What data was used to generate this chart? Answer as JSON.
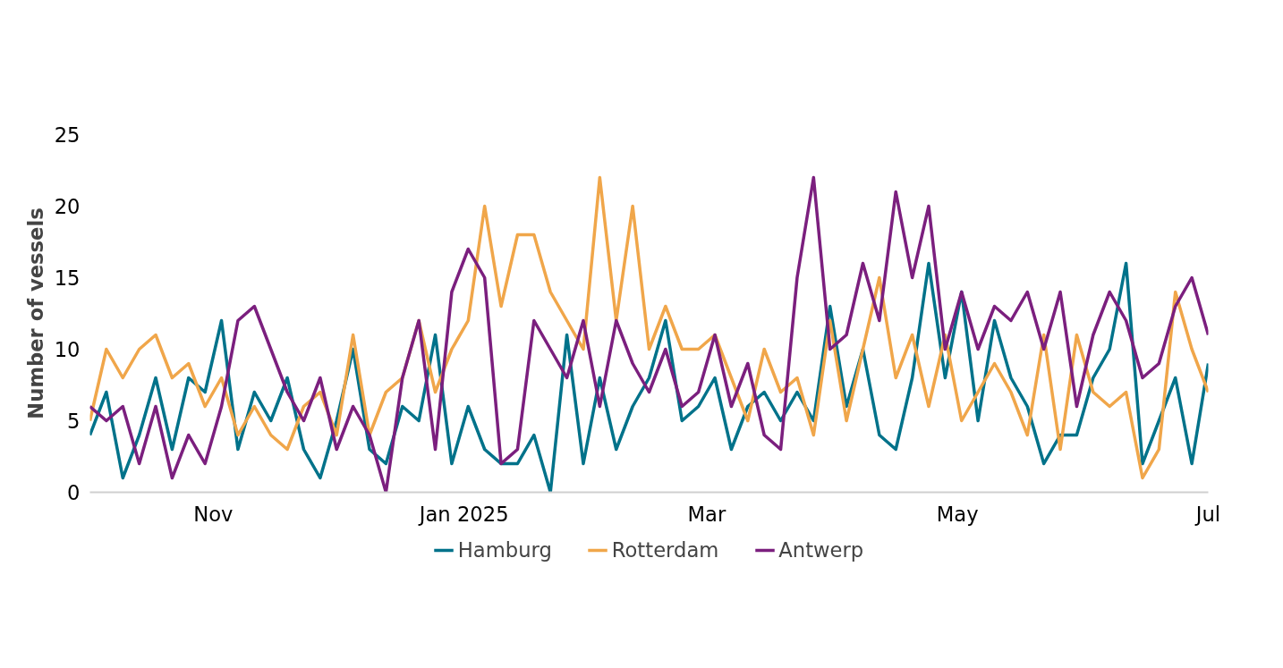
{
  "chart_data": {
    "type": "line",
    "ylabel": "Number of vessels",
    "x": [
      "2024-10-02",
      "2024-10-06",
      "2024-10-10",
      "2024-10-14",
      "2024-10-18",
      "2024-10-22",
      "2024-10-26",
      "2024-10-30",
      "2024-11-03",
      "2024-11-07",
      "2024-11-11",
      "2024-11-15",
      "2024-11-19",
      "2024-11-23",
      "2024-11-27",
      "2024-12-01",
      "2024-12-05",
      "2024-12-09",
      "2024-12-13",
      "2024-12-17",
      "2024-12-21",
      "2024-12-25",
      "2024-12-29",
      "2025-01-02",
      "2025-01-06",
      "2025-01-10",
      "2025-01-14",
      "2025-01-18",
      "2025-01-22",
      "2025-01-26",
      "2025-01-30",
      "2025-02-03",
      "2025-02-07",
      "2025-02-11",
      "2025-02-15",
      "2025-02-19",
      "2025-02-23",
      "2025-02-27",
      "2025-03-03",
      "2025-03-07",
      "2025-03-11",
      "2025-03-15",
      "2025-03-19",
      "2025-03-23",
      "2025-03-27",
      "2025-03-31",
      "2025-04-04",
      "2025-04-08",
      "2025-04-12",
      "2025-04-16",
      "2025-04-20",
      "2025-04-24",
      "2025-04-28",
      "2025-05-02",
      "2025-05-06",
      "2025-05-10",
      "2025-05-14",
      "2025-05-18",
      "2025-05-22",
      "2025-05-26",
      "2025-05-30",
      "2025-06-03",
      "2025-06-07",
      "2025-06-11",
      "2025-06-15",
      "2025-06-19",
      "2025-06-23",
      "2025-06-27",
      "2025-07-01"
    ],
    "series": [
      {
        "name": "Hamburg",
        "color": "#00728a",
        "values": [
          4,
          7,
          1,
          4,
          8,
          3,
          8,
          7,
          12,
          3,
          7,
          5,
          8,
          3,
          1,
          5,
          10,
          3,
          2,
          6,
          5,
          11,
          2,
          6,
          3,
          2,
          2,
          4,
          0,
          11,
          2,
          8,
          3,
          6,
          8,
          12,
          5,
          6,
          8,
          3,
          6,
          7,
          5,
          7,
          5,
          13,
          6,
          10,
          4,
          3,
          8,
          16,
          8,
          14,
          5,
          12,
          8,
          6,
          2,
          4,
          4,
          8,
          10,
          16,
          2,
          5,
          8,
          2,
          9
        ]
      },
      {
        "name": "Rotterdam",
        "color": "#f0a64a",
        "values": [
          5,
          10,
          8,
          10,
          11,
          8,
          9,
          6,
          8,
          4,
          6,
          4,
          3,
          6,
          7,
          4,
          11,
          4,
          7,
          8,
          12,
          7,
          10,
          12,
          20,
          13,
          18,
          18,
          14,
          12,
          10,
          22,
          12,
          20,
          10,
          13,
          10,
          10,
          11,
          8,
          5,
          10,
          7,
          8,
          4,
          12,
          5,
          10,
          15,
          8,
          11,
          6,
          11,
          5,
          7,
          9,
          7,
          4,
          11,
          3,
          11,
          7,
          6,
          7,
          1,
          3,
          14,
          10,
          7
        ]
      },
      {
        "name": "Antwerp",
        "color": "#7b1f7e",
        "values": [
          6,
          5,
          6,
          2,
          6,
          1,
          4,
          2,
          6,
          12,
          13,
          10,
          7,
          5,
          8,
          3,
          6,
          4,
          0,
          8,
          12,
          3,
          14,
          17,
          15,
          2,
          3,
          12,
          10,
          8,
          12,
          6,
          12,
          9,
          7,
          10,
          6,
          7,
          11,
          6,
          9,
          4,
          3,
          15,
          22,
          10,
          11,
          16,
          12,
          21,
          15,
          20,
          10,
          14,
          10,
          13,
          12,
          14,
          10,
          14,
          6,
          11,
          14,
          12,
          8,
          9,
          13,
          15,
          11
        ]
      }
    ],
    "xlim": [
      "2024-10-02",
      "2025-07-01"
    ],
    "xticks": [
      {
        "value": "2024-11-01",
        "label": "Nov"
      },
      {
        "value": "2025-01-01",
        "label": "Jan 2025"
      },
      {
        "value": "2025-03-01",
        "label": "Mar"
      },
      {
        "value": "2025-05-01",
        "label": "May"
      },
      {
        "value": "2025-07-01",
        "label": "Jul"
      }
    ],
    "ylim": [
      0,
      25
    ],
    "yticks": [
      0,
      5,
      10,
      15,
      20,
      25
    ],
    "grid": false,
    "legend": "bottom",
    "line_style": "solid",
    "marker": "none"
  }
}
